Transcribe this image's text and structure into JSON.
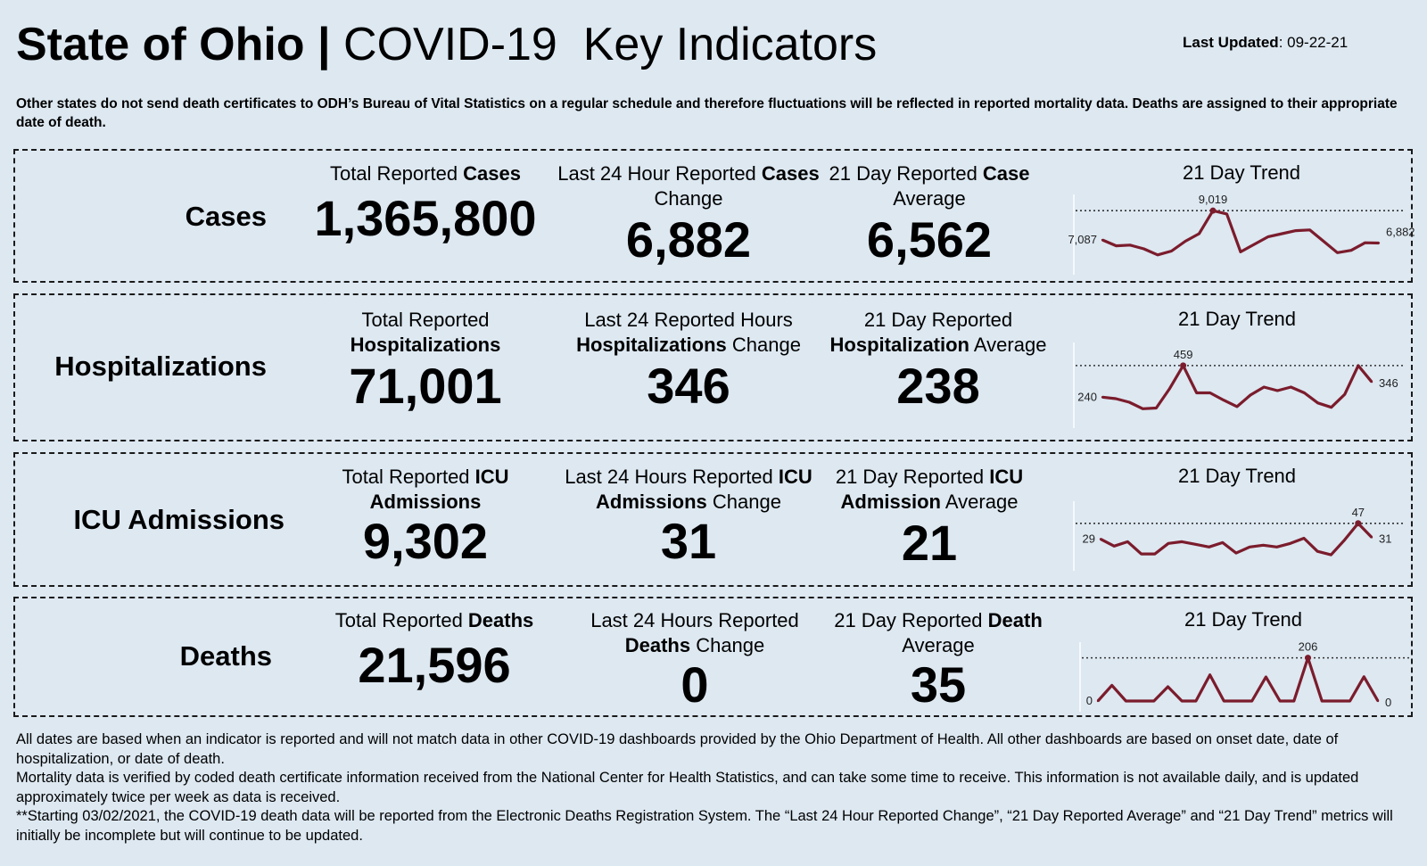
{
  "header": {
    "title_state": "State of Ohio |",
    "title_rest": "COVID-19  Key Indicators",
    "last_updated_label": "Last Updated",
    "last_updated_value": ": 09-22-21"
  },
  "note": "Other states do not send death certificates to ODH’s Bureau of Vital Statistics on a regular schedule and therefore fluctuations will be reflected in reported mortality data. Deaths are assigned to their appropriate date of death.",
  "panels": [
    {
      "label": "Cases",
      "total": {
        "pre": "Total Reported ",
        "bold": "Cases",
        "post": "",
        "value": "1,365,800"
      },
      "change": {
        "pre": "Last 24 Hour Reported ",
        "bold": "Cases",
        "post": " Change",
        "value": "6,882"
      },
      "average": {
        "pre": "21 Day Reported ",
        "bold": "Case",
        "post": " Average",
        "value": "6,562"
      },
      "trend_title": "21 Day Trend"
    },
    {
      "label": "Hospitalizations",
      "total": {
        "pre": "Total Reported ",
        "bold": "Hospitalizations",
        "post": "",
        "value": "71,001"
      },
      "change": {
        "pre": "Last 24 Reported Hours ",
        "bold": "Hospitalizations",
        "post": " Change",
        "value": "346"
      },
      "average": {
        "pre": "21 Day Reported ",
        "bold": "Hospitalization",
        "post": " Average",
        "value": "238"
      },
      "trend_title": "21 Day Trend"
    },
    {
      "label": "ICU Admissions",
      "total": {
        "pre": "Total Reported ",
        "bold": "ICU Admissions",
        "post": "",
        "value": "9,302"
      },
      "change": {
        "pre": "Last 24 Hours Reported ",
        "bold": "ICU Admissions",
        "post": " Change",
        "value": "31"
      },
      "average": {
        "pre": "21 Day Reported ",
        "bold": "ICU Admission",
        "post": " Average",
        "value": "21"
      },
      "trend_title": "21 Day Trend"
    },
    {
      "label": "Deaths",
      "total": {
        "pre": "Total Reported ",
        "bold": "Deaths",
        "post": "",
        "value": "21,596"
      },
      "change": {
        "pre": "Last 24 Hours Reported ",
        "bold": "Deaths",
        "post": " Change",
        "value": "0"
      },
      "average": {
        "pre": "21 Day Reported ",
        "bold": "Death",
        "post": " Average",
        "value": "35"
      },
      "trend_title": "21 Day Trend"
    }
  ],
  "chart_data": [
    {
      "type": "line",
      "name": "Cases 21 Day Trend",
      "values": [
        7087,
        6700,
        6750,
        6500,
        6100,
        6350,
        7000,
        7500,
        9019,
        8800,
        6300,
        6800,
        7300,
        7500,
        7700,
        7750,
        7000,
        6250,
        6400,
        6900,
        6882
      ],
      "labels": {
        "first": "7,087",
        "max": "9,019",
        "last": "6,882"
      },
      "ylim": [
        5500,
        9500
      ],
      "line_color": "#7b1c2c"
    },
    {
      "type": "line",
      "name": "Hospitalizations 21 Day Trend",
      "values": [
        240,
        230,
        205,
        160,
        165,
        300,
        459,
        270,
        270,
        220,
        175,
        255,
        310,
        285,
        310,
        270,
        200,
        170,
        260,
        459,
        346
      ],
      "labels": {
        "first": "240",
        "max": "459",
        "last": "346"
      },
      "ylim": [
        100,
        520
      ],
      "line_color": "#7b1c2c"
    },
    {
      "type": "line",
      "name": "ICU Admissions 21 Day Trend",
      "values": [
        29,
        21,
        26,
        12,
        12,
        24,
        26,
        23,
        20,
        25,
        13,
        20,
        22,
        20,
        24,
        30,
        15,
        11,
        28,
        47,
        31
      ],
      "labels": {
        "first": "29",
        "max": "47",
        "last": "31"
      },
      "ylim": [
        5,
        60
      ],
      "line_color": "#7b1c2c"
    },
    {
      "type": "line",
      "name": "Deaths 21 Day Trend",
      "values": [
        0,
        75,
        0,
        0,
        0,
        68,
        0,
        0,
        125,
        0,
        0,
        0,
        115,
        0,
        0,
        206,
        0,
        0,
        0,
        116,
        0
      ],
      "labels": {
        "first": "0",
        "max": "206",
        "last": "0"
      },
      "ylim": [
        0,
        230
      ],
      "line_color": "#7b1c2c"
    }
  ],
  "footer": {
    "p1": "All dates are based when an indicator is reported and will not match data in other COVID-19 dashboards provided by the Ohio Department of Health. All other dashboards are based on onset date, date of hospitalization, or date of death.",
    "p2": "Mortality data is verified by coded death certificate information received from the National Center for Health Statistics, and can take some time to receive. This information is not available daily, and is updated approximately twice per week as data is received.",
    "p3": "**Starting 03/02/2021, the COVID-19 death data will be reported from the Electronic Deaths Registration System. The “Last 24 Hour Reported Change”, “21 Day Reported Average” and “21 Day Trend” metrics will initially be incomplete but will continue to be updated."
  }
}
